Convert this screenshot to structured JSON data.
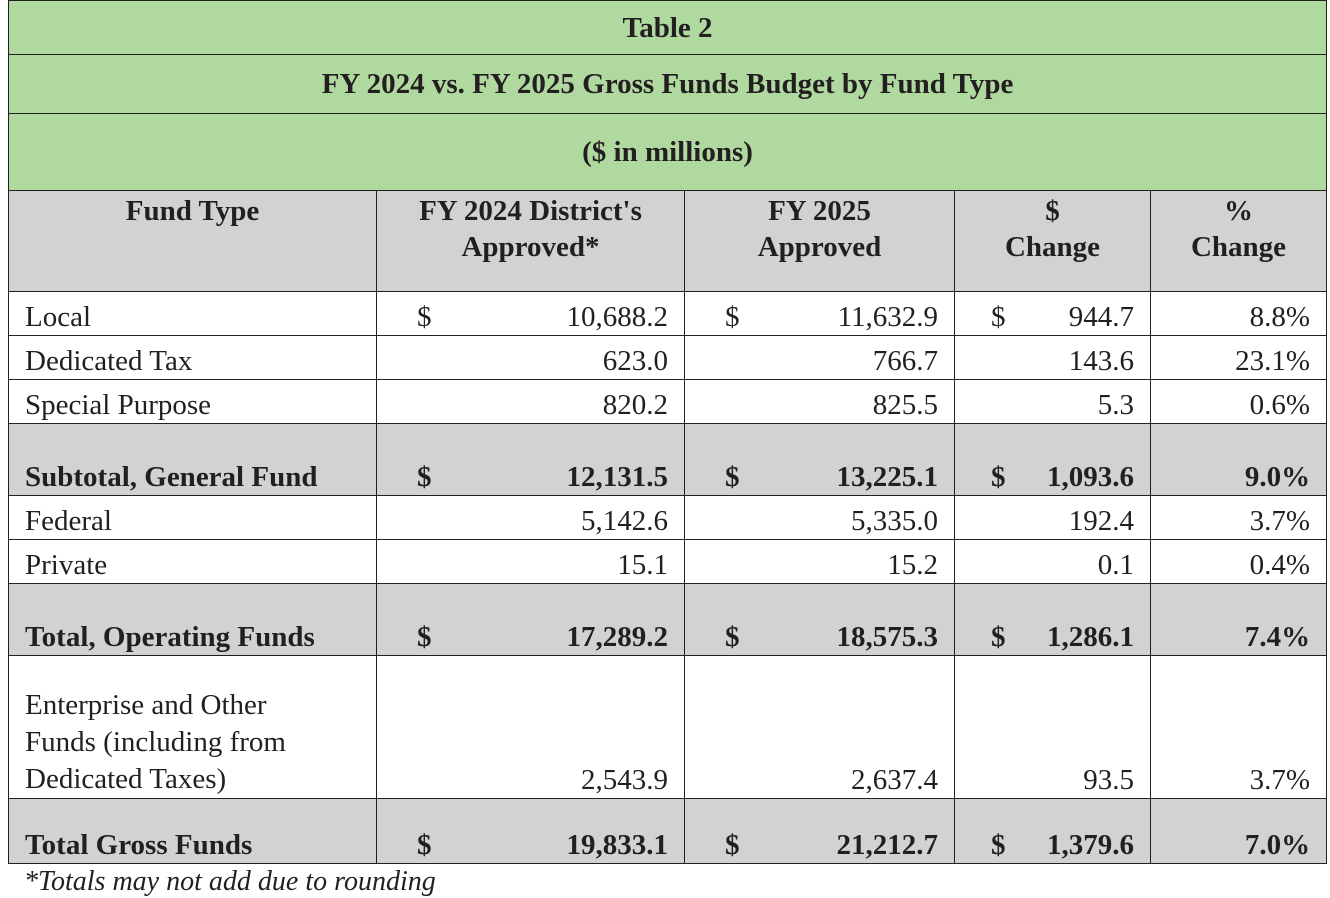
{
  "table": {
    "caption": "Table 2",
    "title": "FY 2024 vs. FY 2025 Gross Funds Budget by Fund Type",
    "unit_note": "($ in millions)",
    "headers": {
      "fund_type": "Fund Type",
      "fy2024_line1": "FY 2024 District's",
      "fy2024_line2": "Approved*",
      "fy2025_line1": "FY 2025",
      "fy2025_line2": "Approved",
      "dollar_line1": "$",
      "dollar_line2": "Change",
      "pct_line1": "%",
      "pct_line2": "Change"
    },
    "currency_symbol": "$",
    "rows": [
      {
        "label": "Local",
        "fy2024": "10,688.2",
        "fy2025": "11,632.9",
        "change": "944.7",
        "pct": "8.8%"
      },
      {
        "label": "Dedicated Tax",
        "fy2024": "623.0",
        "fy2025": "766.7",
        "change": "143.6",
        "pct": "23.1%"
      },
      {
        "label": "Special Purpose",
        "fy2024": "820.2",
        "fy2025": "825.5",
        "change": "5.3",
        "pct": "0.6%"
      },
      {
        "label": "Subtotal, General Fund",
        "fy2024": "12,131.5",
        "fy2025": "13,225.1",
        "change": "1,093.6",
        "pct": "9.0%"
      },
      {
        "label": "Federal",
        "fy2024": "5,142.6",
        "fy2025": "5,335.0",
        "change": "192.4",
        "pct": "3.7%"
      },
      {
        "label": "Private",
        "fy2024": "15.1",
        "fy2025": "15.2",
        "change": "0.1",
        "pct": "0.4%"
      },
      {
        "label": "Total, Operating Funds",
        "fy2024": "17,289.2",
        "fy2025": "18,575.3",
        "change": "1,286.1",
        "pct": "7.4%"
      },
      {
        "label_line1": "Enterprise and Other",
        "label_line2": "Funds (including from",
        "label_line3": "Dedicated Taxes)",
        "fy2024": "2,543.9",
        "fy2025": "2,637.4",
        "change": "93.5",
        "pct": "3.7%"
      },
      {
        "label": "Total Gross Funds",
        "fy2024": "19,833.1",
        "fy2025": "21,212.7",
        "change": "1,379.6",
        "pct": "7.0%"
      }
    ]
  },
  "footnote": "*Totals may not add due to rounding"
}
